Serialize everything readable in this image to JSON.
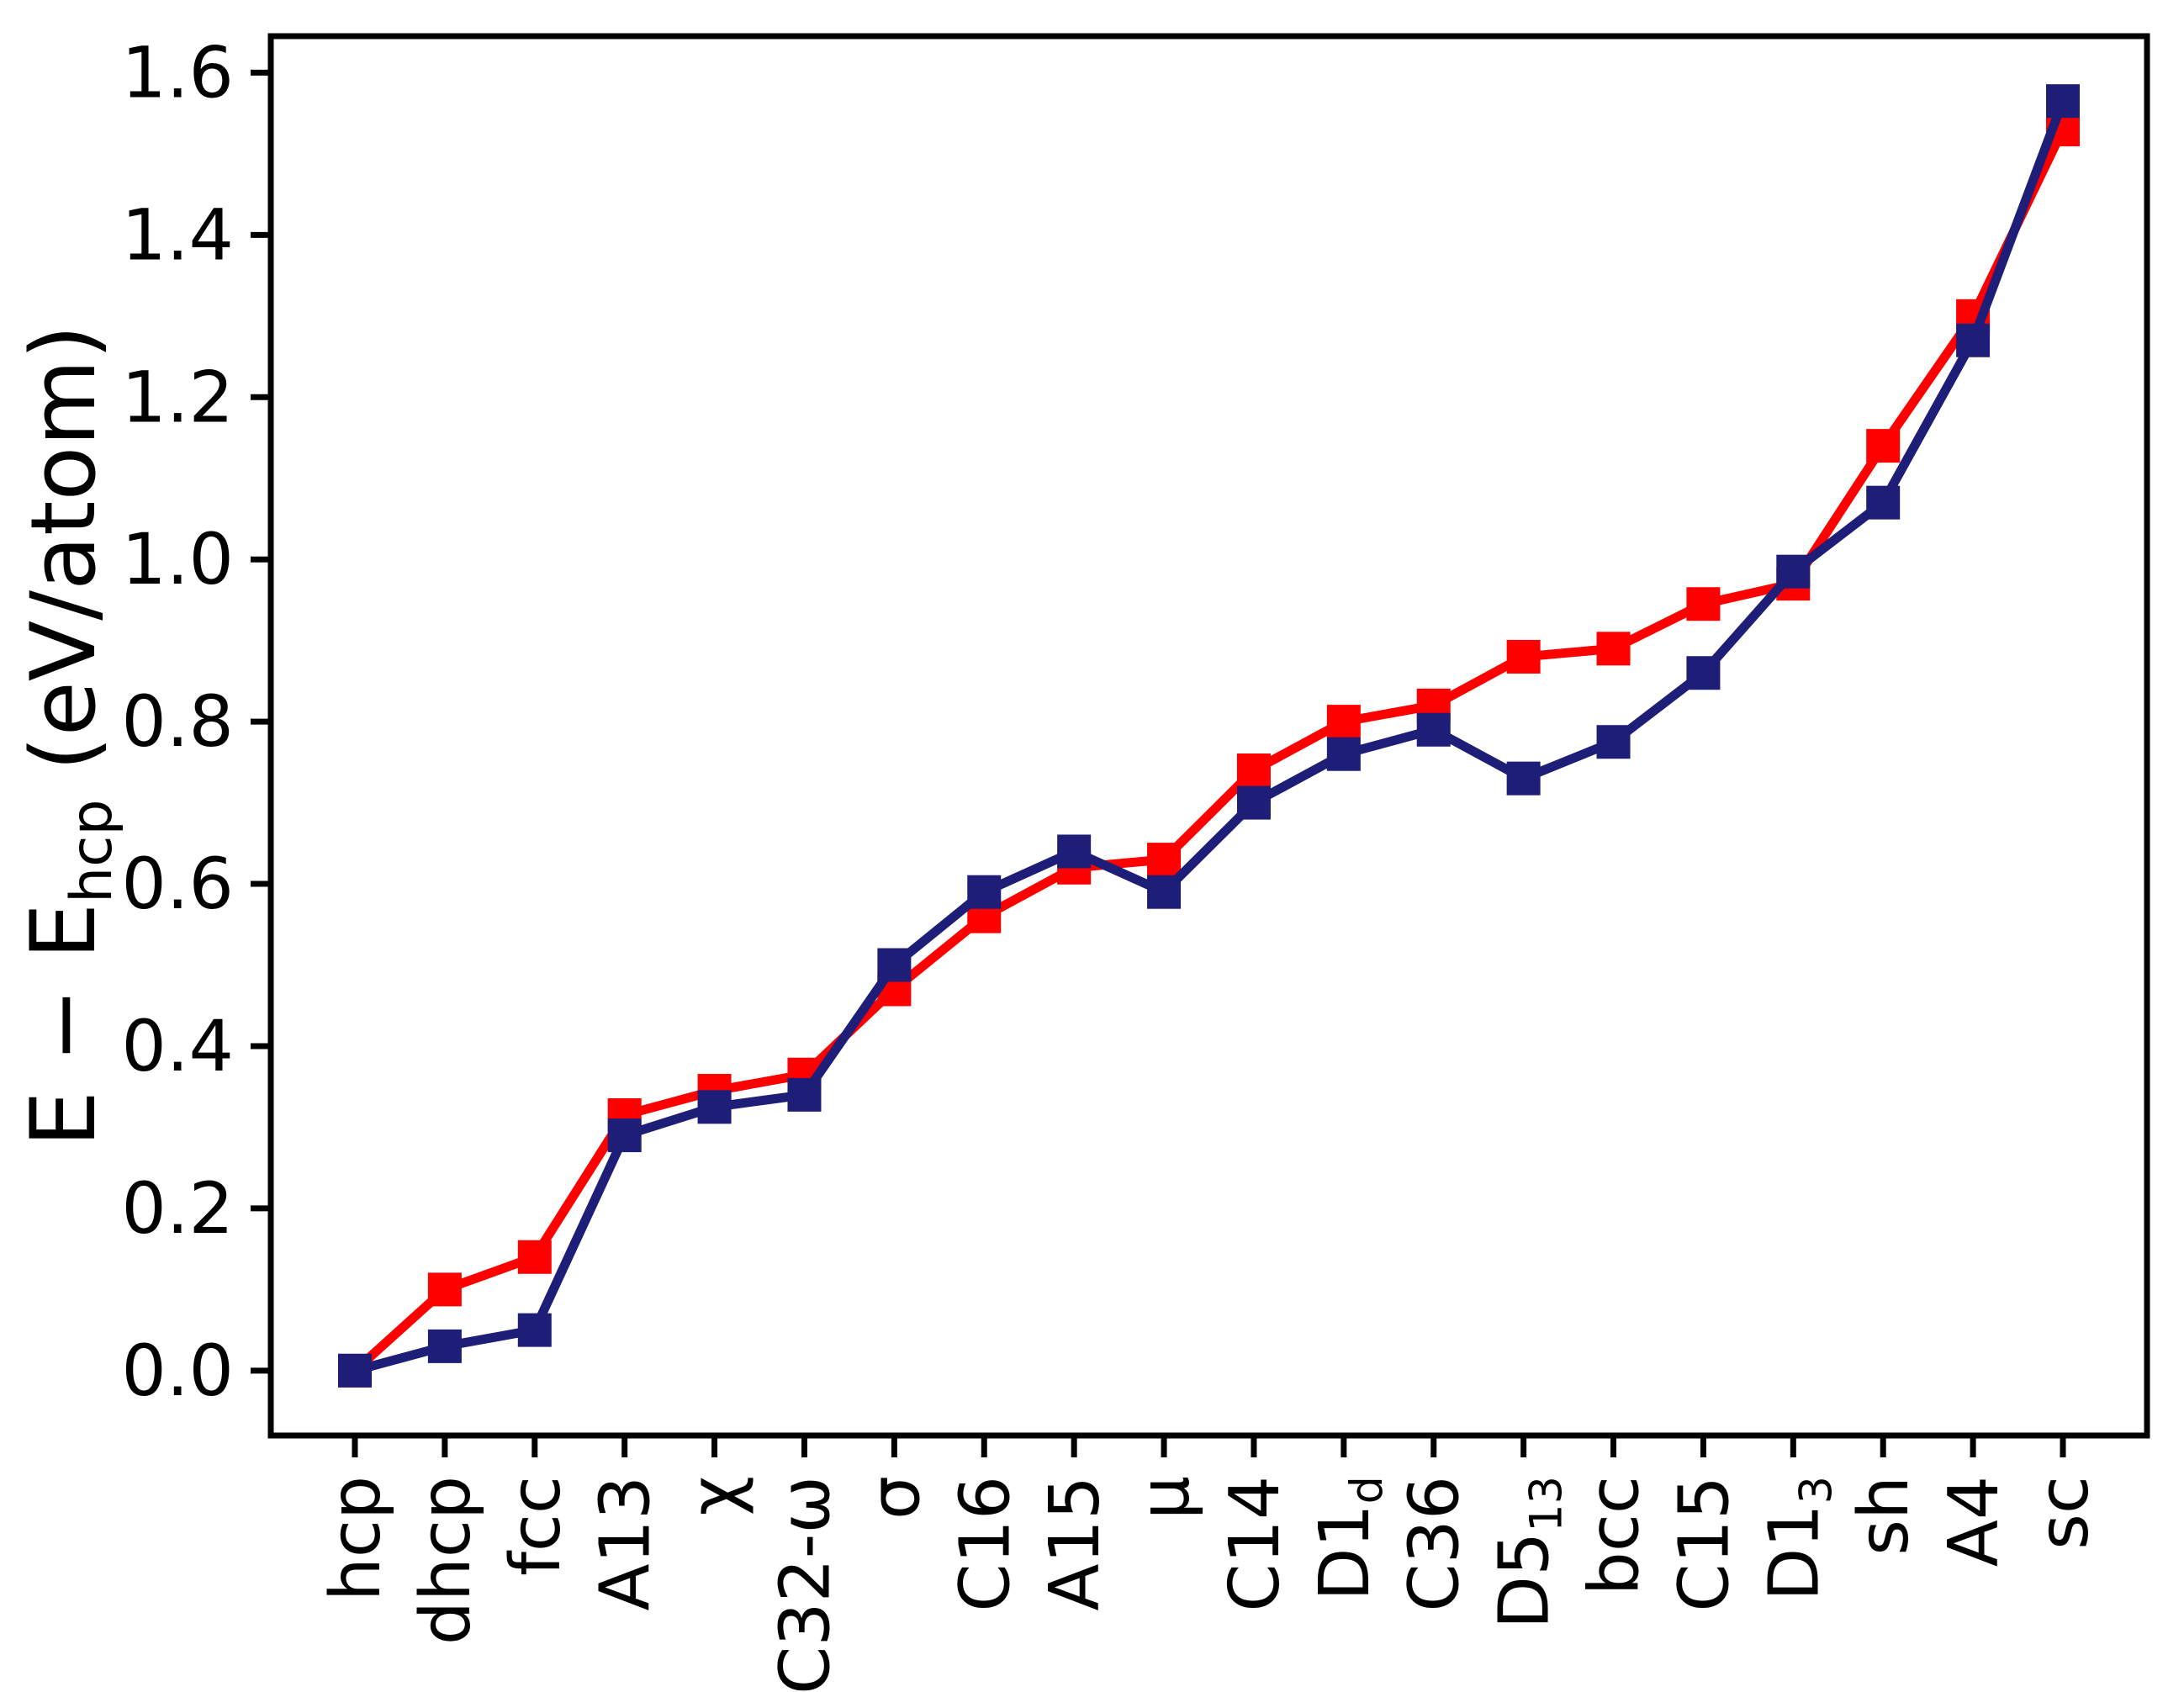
{
  "figure": {
    "background": "#ffffff",
    "frame_color": "#000000"
  },
  "chart_data": {
    "type": "line",
    "title": "",
    "xlabel": "",
    "ylabel": "E − E_{hcp} (eV/atom)",
    "grid": false,
    "legend_position": "none",
    "marker": "square",
    "categories": [
      "hcp",
      "dhcp",
      "fcc",
      "A13",
      "χ",
      "C32-ω",
      "σ",
      "C16",
      "A15",
      "μ",
      "C14",
      "D1_{d}",
      "C36",
      "D5_{13}",
      "bcc",
      "C15",
      "D1_{3}",
      "sh",
      "A4",
      "sc"
    ],
    "yticks": [
      0.0,
      0.2,
      0.4,
      0.6,
      0.8,
      1.0,
      1.2,
      1.4,
      1.6
    ],
    "ytick_labels": [
      "0.0",
      "0.2",
      "0.4",
      "0.6",
      "0.8",
      "1.0",
      "1.2",
      "1.4",
      "1.6"
    ],
    "ylim": [
      -0.08,
      1.645
    ],
    "series": [
      {
        "name": "red-series",
        "color": "#ff0000",
        "values": [
          0.0,
          0.1,
          0.14,
          0.315,
          0.345,
          0.365,
          0.47,
          0.56,
          0.62,
          0.63,
          0.74,
          0.8,
          0.82,
          0.88,
          0.89,
          0.945,
          0.97,
          1.14,
          1.3,
          1.53
        ]
      },
      {
        "name": "navy-series",
        "color": "#1e1e78",
        "values": [
          0.0,
          0.03,
          0.05,
          0.29,
          0.325,
          0.34,
          0.5,
          0.59,
          0.64,
          0.59,
          0.7,
          0.76,
          0.79,
          0.73,
          0.775,
          0.86,
          0.985,
          1.07,
          1.27,
          1.565
        ]
      }
    ]
  }
}
